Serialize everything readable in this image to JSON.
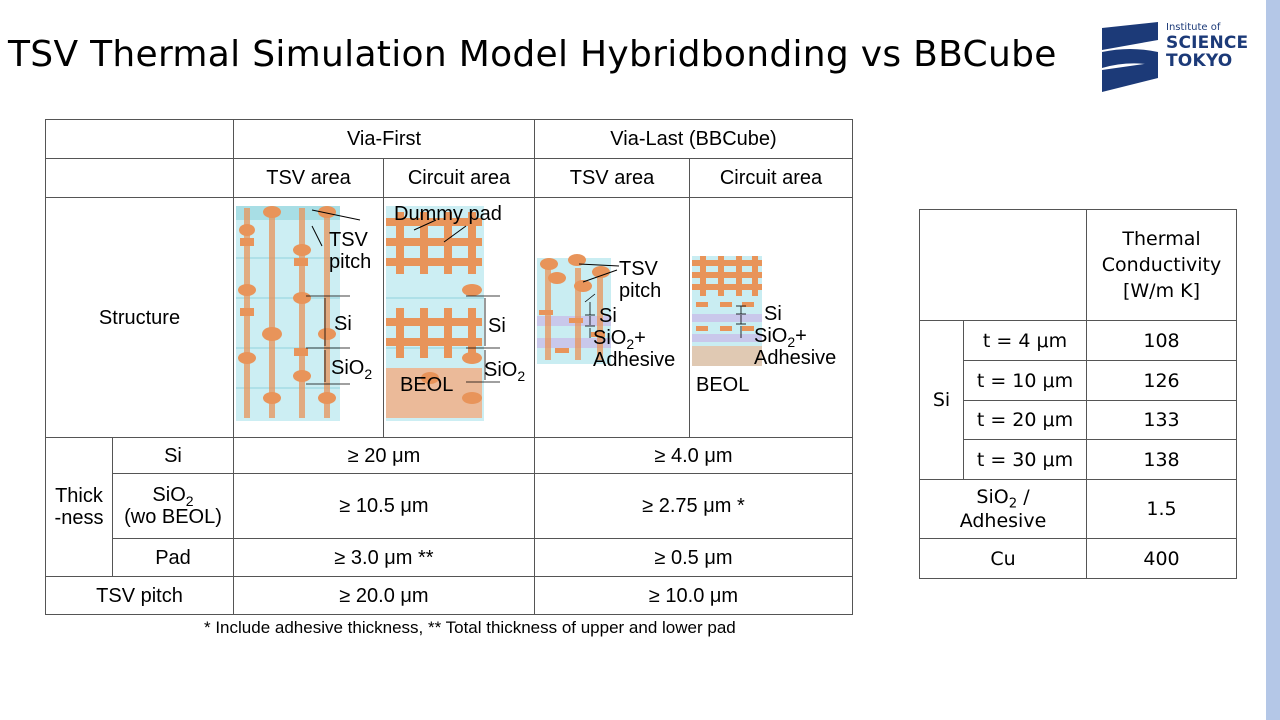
{
  "slide": {
    "title": "TSV Thermal Simulation Model Hybridbonding vs BBCube",
    "footnote": "* Include adhesive thickness, ** Total thickness of upper and lower pad"
  },
  "logo": {
    "line1": "Institute of",
    "line2": "SCIENCE",
    "line3": "TOKYO",
    "colors": {
      "navy": "#1c3a78"
    }
  },
  "main_table": {
    "via_first": "Via-First",
    "via_last": "Via-Last (BBCube)",
    "tsv_area": "TSV area",
    "circuit_area": "Circuit area",
    "structure": "Structure",
    "thickness_line1": "Thick",
    "thickness_line2": "-ness",
    "si_label": "Si",
    "sio2_label_main": "SiO",
    "sio2_sub": "2",
    "sio2_note": "(wo BEOL)",
    "pad_label": "Pad",
    "tsv_pitch_label": "TSV pitch",
    "si_first": "≥ 20 μm",
    "si_last": "≥ 4.0 μm",
    "sio2_first": "≥ 10.5 μm",
    "sio2_last": "≥ 2.75 μm *",
    "pad_first": "≥ 3.0 μm **",
    "pad_last": "≥ 0.5 μm",
    "pitch_first": "≥ 20.0 μm",
    "pitch_last": "≥ 10.0 μm"
  },
  "diagram_labels": {
    "tsv": "TSV",
    "pitch": "pitch",
    "si": "Si",
    "sio2": "SiO",
    "sub2": "2",
    "dummy_pad": "Dummy pad",
    "beol": "BEOL",
    "plus": "+",
    "adhesive": "Adhesive"
  },
  "cond_table": {
    "header_line1": "Thermal",
    "header_line2": "Conductivity",
    "header_line3": "[W/m K]",
    "si_label": "Si",
    "rows": [
      {
        "t": "t = 4 μm",
        "k": "108"
      },
      {
        "t": "t = 10 μm",
        "k": "126"
      },
      {
        "t": "t = 20 μm",
        "k": "133"
      },
      {
        "t": "t = 30 μm",
        "k": "138"
      }
    ],
    "sio2_main": "SiO",
    "sio2_sub": "2",
    "sio2_rest": " /",
    "adhesive": "Adhesive",
    "sio2_k": "1.5",
    "cu_label": "Cu",
    "cu_k": "400"
  },
  "colors": {
    "copper": "#e8945a",
    "copper_light": "#f0b088",
    "glass": "#bfeaf0",
    "glass_dark": "#8fd3dc",
    "accent_bar": "#b4c7e7"
  }
}
